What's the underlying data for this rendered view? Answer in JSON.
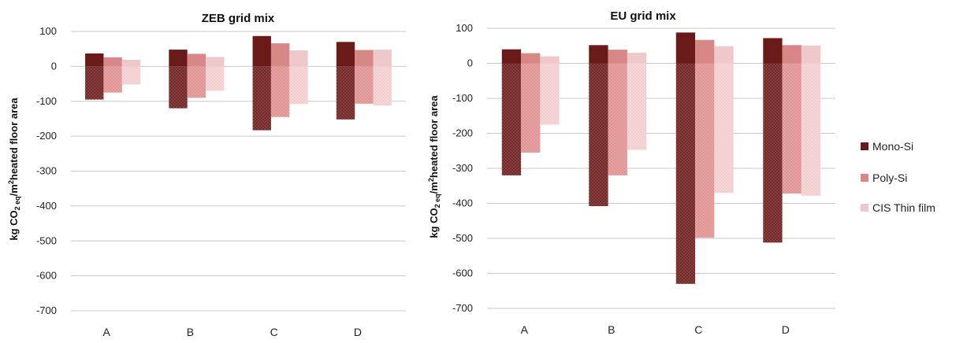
{
  "colors": {
    "mono": "#6e2424",
    "poly": "#e09393",
    "cis": "#f1cdcd",
    "mono_pos": "#6b1a1a",
    "poly_pos": "#d88787",
    "cis_pos": "#efc9c9",
    "grid": "#c8c8c8"
  },
  "legend": [
    "Mono-Si",
    "Poly-Si",
    "CIS Thin film"
  ],
  "y_axis_label": {
    "prefix": "kg CO",
    "sub1": "2 eq",
    "mid": "/m",
    "sup": "2",
    "suffix": "heated floor area"
  },
  "chart_data": [
    {
      "type": "bar",
      "title": "ZEB grid mix",
      "categories": [
        "A",
        "B",
        "C",
        "D"
      ],
      "ylim": [
        -700,
        100
      ],
      "yticks": [
        100,
        0,
        -100,
        -200,
        -300,
        -400,
        -500,
        -600,
        -700
      ],
      "grid": true,
      "series": [
        {
          "name": "Mono-Si",
          "positive": [
            37,
            48,
            87,
            70
          ],
          "negative": [
            -95,
            -120,
            -183,
            -152
          ]
        },
        {
          "name": "Poly-Si",
          "positive": [
            26,
            36,
            66,
            47
          ],
          "negative": [
            -75,
            -90,
            -145,
            -107
          ]
        },
        {
          "name": "CIS Thin film",
          "positive": [
            19,
            27,
            46,
            48
          ],
          "negative": [
            -52,
            -70,
            -108,
            -112
          ]
        }
      ]
    },
    {
      "type": "bar",
      "title": "EU grid mix",
      "categories": [
        "A",
        "B",
        "C",
        "D"
      ],
      "ylim": [
        -700,
        100
      ],
      "yticks": [
        100,
        0,
        -100,
        -200,
        -300,
        -400,
        -500,
        -600,
        -700
      ],
      "grid": true,
      "legend_position": "right",
      "series": [
        {
          "name": "Mono-Si",
          "positive": [
            40,
            52,
            88,
            72
          ],
          "negative": [
            -320,
            -408,
            -630,
            -512
          ]
        },
        {
          "name": "Poly-Si",
          "positive": [
            29,
            39,
            67,
            52
          ],
          "negative": [
            -255,
            -320,
            -498,
            -372
          ]
        },
        {
          "name": "CIS Thin film",
          "positive": [
            20,
            30,
            49,
            51
          ],
          "negative": [
            -175,
            -247,
            -370,
            -378
          ]
        }
      ]
    }
  ]
}
